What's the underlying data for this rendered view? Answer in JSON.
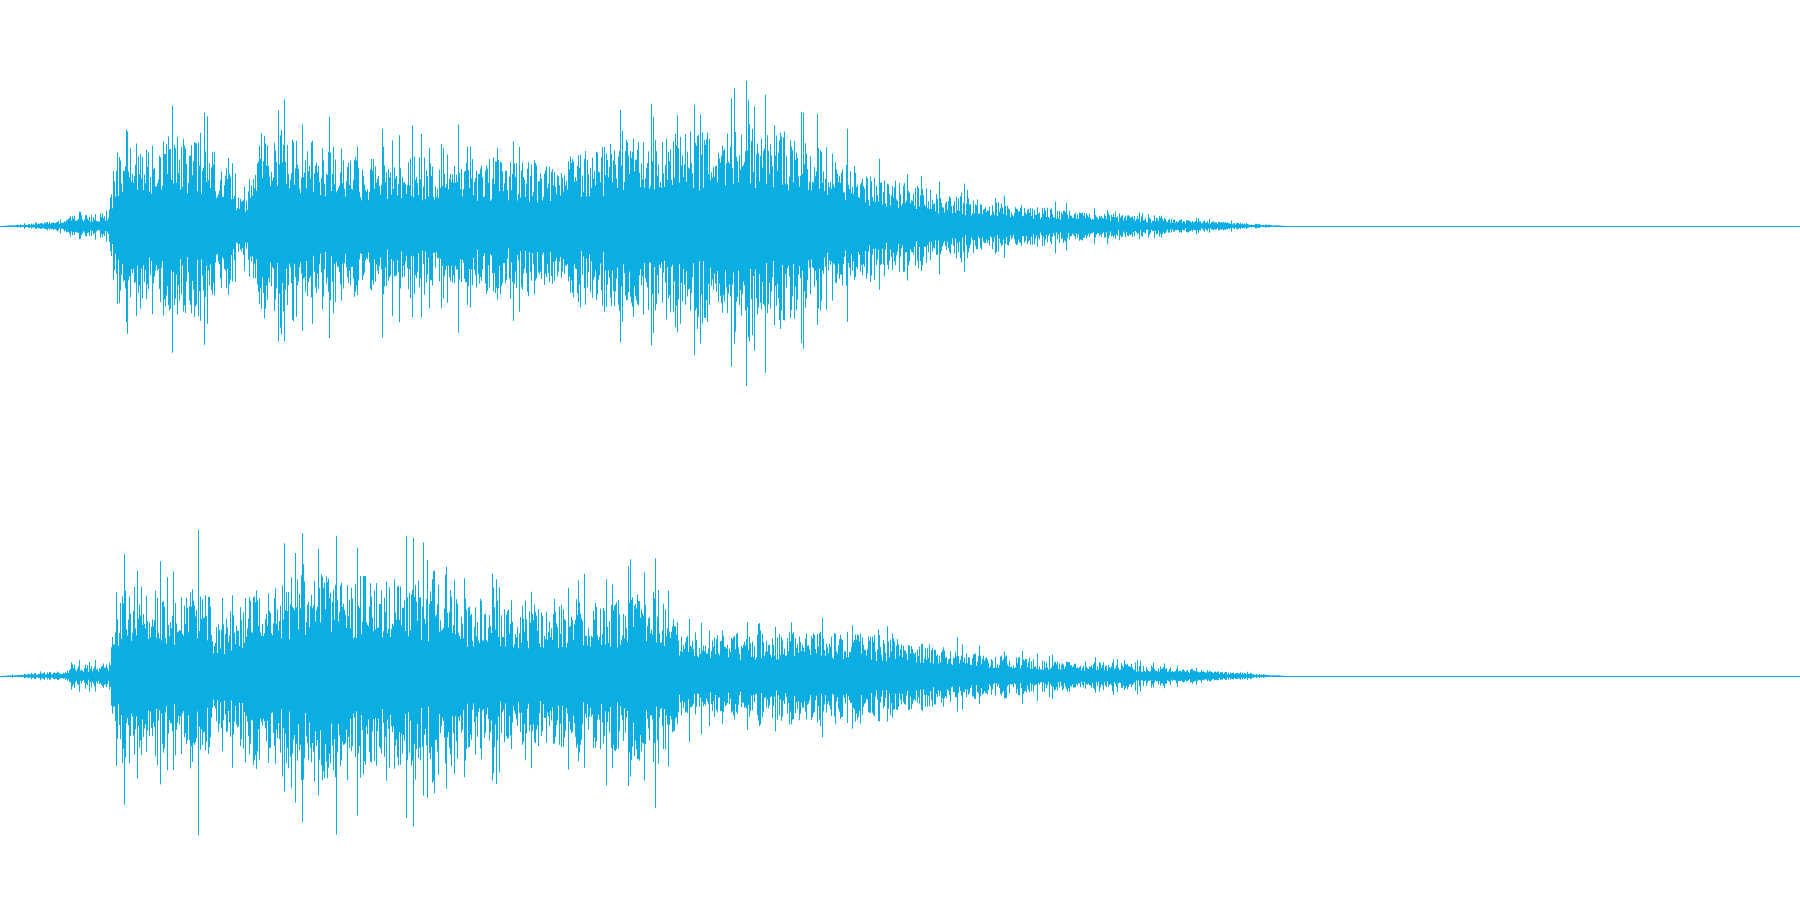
{
  "waveform": {
    "color": "#0aaee2",
    "channels": [
      {
        "name": "",
        "envelope": [
          {
            "t": 0.0,
            "a": 0.0
          },
          {
            "t": 0.036,
            "a": 0.05
          },
          {
            "t": 0.04,
            "a": 0.12
          },
          {
            "t": 0.046,
            "a": 0.1
          },
          {
            "t": 0.06,
            "a": 0.12
          },
          {
            "t": 0.064,
            "a": 0.55
          },
          {
            "t": 0.07,
            "a": 0.9
          },
          {
            "t": 0.08,
            "a": 0.75
          },
          {
            "t": 0.1,
            "a": 0.85
          },
          {
            "t": 0.12,
            "a": 0.7
          },
          {
            "t": 0.135,
            "a": 0.25
          },
          {
            "t": 0.145,
            "a": 0.95
          },
          {
            "t": 0.17,
            "a": 0.8
          },
          {
            "t": 0.2,
            "a": 0.65
          },
          {
            "t": 0.25,
            "a": 0.65
          },
          {
            "t": 0.3,
            "a": 0.6
          },
          {
            "t": 0.35,
            "a": 0.8
          },
          {
            "t": 0.4,
            "a": 0.92
          },
          {
            "t": 0.43,
            "a": 0.95
          },
          {
            "t": 0.46,
            "a": 0.75
          },
          {
            "t": 0.48,
            "a": 0.5
          },
          {
            "t": 0.52,
            "a": 0.32
          },
          {
            "t": 0.56,
            "a": 0.2
          },
          {
            "t": 0.6,
            "a": 0.14
          },
          {
            "t": 0.64,
            "a": 0.08
          },
          {
            "t": 0.68,
            "a": 0.04
          },
          {
            "t": 0.715,
            "a": 0.0
          },
          {
            "t": 1.0,
            "a": 0.0
          }
        ]
      },
      {
        "name": "",
        "envelope": [
          {
            "t": 0.0,
            "a": 0.0
          },
          {
            "t": 0.036,
            "a": 0.05
          },
          {
            "t": 0.04,
            "a": 0.12
          },
          {
            "t": 0.046,
            "a": 0.1
          },
          {
            "t": 0.06,
            "a": 0.12
          },
          {
            "t": 0.064,
            "a": 0.55
          },
          {
            "t": 0.07,
            "a": 0.85
          },
          {
            "t": 0.1,
            "a": 0.75
          },
          {
            "t": 0.113,
            "a": 0.98
          },
          {
            "t": 0.12,
            "a": 0.45
          },
          {
            "t": 0.14,
            "a": 0.8
          },
          {
            "t": 0.17,
            "a": 0.95
          },
          {
            "t": 0.2,
            "a": 0.92
          },
          {
            "t": 0.24,
            "a": 0.88
          },
          {
            "t": 0.26,
            "a": 0.7
          },
          {
            "t": 0.3,
            "a": 0.7
          },
          {
            "t": 0.34,
            "a": 0.7
          },
          {
            "t": 0.365,
            "a": 0.8
          },
          {
            "t": 0.38,
            "a": 0.45
          },
          {
            "t": 0.42,
            "a": 0.38
          },
          {
            "t": 0.46,
            "a": 0.42
          },
          {
            "t": 0.5,
            "a": 0.35
          },
          {
            "t": 0.54,
            "a": 0.22
          },
          {
            "t": 0.58,
            "a": 0.15
          },
          {
            "t": 0.62,
            "a": 0.12
          },
          {
            "t": 0.66,
            "a": 0.07
          },
          {
            "t": 0.7,
            "a": 0.02
          },
          {
            "t": 0.715,
            "a": 0.0
          },
          {
            "t": 1.0,
            "a": 0.0
          }
        ]
      }
    ]
  }
}
